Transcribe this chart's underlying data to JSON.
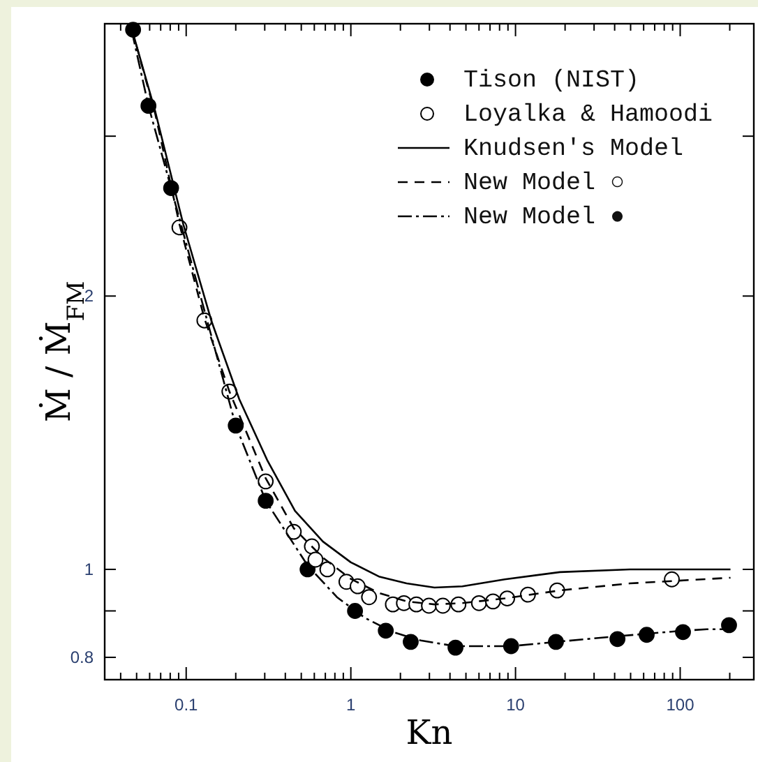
{
  "chart_data": {
    "type": "scatter",
    "xlabel": "Kn",
    "ylabel": "Ṁ / Ṁ$_{FM}$",
    "log": "xy",
    "xlim": [
      0.032,
      280
    ],
    "ylim": [
      0.756,
      3.99
    ],
    "xticks": [
      {
        "value": 0.04,
        "label": null
      },
      {
        "value": 0.05,
        "label": null
      },
      {
        "value": 0.06,
        "label": null
      },
      {
        "value": 0.07,
        "label": null
      },
      {
        "value": 0.08,
        "label": null
      },
      {
        "value": 0.09,
        "label": null
      },
      0.1,
      {
        "value": 0.2,
        "label": null
      },
      {
        "value": 0.3,
        "label": null
      },
      {
        "value": 0.4,
        "label": null
      },
      {
        "value": 0.5,
        "label": null
      },
      {
        "value": 0.6,
        "label": null
      },
      {
        "value": 0.7,
        "label": null
      },
      {
        "value": 0.8,
        "label": null
      },
      {
        "value": 0.9,
        "label": null
      },
      1,
      {
        "value": 2,
        "label": null
      },
      {
        "value": 3,
        "label": null
      },
      {
        "value": 4,
        "label": null
      },
      {
        "value": 5,
        "label": null
      },
      {
        "value": 6,
        "label": null
      },
      {
        "value": 7,
        "label": null
      },
      {
        "value": 8,
        "label": null
      },
      {
        "value": 9,
        "label": null
      },
      10,
      {
        "value": 20,
        "label": null
      },
      {
        "value": 30,
        "label": null
      },
      {
        "value": 40,
        "label": null
      },
      {
        "value": 50,
        "label": null
      },
      {
        "value": 60,
        "label": null
      },
      {
        "value": 70,
        "label": null
      },
      {
        "value": 80,
        "label": null
      },
      {
        "value": 90,
        "label": null
      },
      100,
      {
        "value": 200,
        "label": null
      }
    ],
    "yticks": [
      0.8,
      {
        "value": 0.9,
        "label": null
      },
      1,
      2,
      {
        "value": 3,
        "label": null
      }
    ],
    "grid": false,
    "legend": "top right",
    "series": [
      {
        "name": "Tison (NIST)",
        "marker": "circle",
        "color": "#000000",
        "x": [
          0.0476,
          0.059,
          0.081,
          0.2,
          0.304,
          0.546,
          1.06,
          1.63,
          2.31,
          4.32,
          9.4,
          17.6,
          41.6,
          62.6,
          104,
          198
        ],
        "values": [
          3.93,
          3.24,
          2.63,
          1.44,
          1.19,
          1.0,
          0.9,
          0.856,
          0.832,
          0.82,
          0.823,
          0.832,
          0.838,
          0.847,
          0.853,
          0.868
        ]
      },
      {
        "name": "Loyalka & Hamoodi",
        "marker": "circle",
        "color": "#ffffff",
        "x": [
          0.091,
          0.129,
          0.183,
          0.304,
          0.45,
          0.58,
          0.61,
          0.72,
          0.94,
          1.1,
          1.29,
          1.8,
          2.1,
          2.5,
          2.98,
          3.62,
          4.5,
          6.0,
          7.3,
          8.9,
          11.9,
          17.9,
          89
        ],
        "values": [
          2.38,
          1.88,
          1.57,
          1.25,
          1.1,
          1.06,
          1.025,
          1.0,
          0.969,
          0.958,
          0.932,
          0.915,
          0.918,
          0.915,
          0.912,
          0.912,
          0.915,
          0.918,
          0.922,
          0.929,
          0.938,
          0.948,
          0.975
        ]
      },
      {
        "name": "Knudsen's Model",
        "type": "line",
        "line_style": "solid",
        "marker": "none",
        "color": "#000000",
        "x": [
          0.0467,
          0.065,
          0.096,
          0.142,
          0.21,
          0.31,
          0.458,
          0.677,
          1,
          1.48,
          2.18,
          3.22,
          4.76,
          8.6,
          18.6,
          49.5,
          202
        ],
        "values": [
          3.94,
          3.19,
          2.4,
          1.88,
          1.54,
          1.32,
          1.16,
          1.073,
          1.018,
          0.982,
          0.965,
          0.955,
          0.958,
          0.975,
          0.993,
          1.0,
          1.0
        ]
      },
      {
        "name": "New Model ○",
        "type": "line",
        "line_style": "dashed",
        "marker": "none",
        "color": "#000000",
        "x": [
          0.0467,
          0.065,
          0.091,
          0.129,
          0.183,
          0.304,
          0.45,
          0.677,
          1,
          1.48,
          2.18,
          3.22,
          4.76,
          8.6,
          18.6,
          49.5,
          202
        ],
        "values": [
          3.94,
          3.17,
          2.4,
          1.89,
          1.57,
          1.26,
          1.11,
          1.03,
          0.976,
          0.942,
          0.922,
          0.915,
          0.918,
          0.929,
          0.948,
          0.965,
          0.979
        ]
      },
      {
        "name": "New Model ●",
        "type": "line",
        "line_style": "dashdot",
        "marker": "none",
        "color": "#000000",
        "x": [
          0.0467,
          0.059,
          0.081,
          0.2,
          0.304,
          0.546,
          0.823,
          1.22,
          1.8,
          2.65,
          4.32,
          9.4,
          17.6,
          41.6,
          104,
          145,
          202
        ],
        "values": [
          3.92,
          3.24,
          2.63,
          1.44,
          1.19,
          1.01,
          0.932,
          0.884,
          0.853,
          0.835,
          0.823,
          0.823,
          0.832,
          0.844,
          0.856,
          0.859,
          0.859
        ]
      }
    ]
  }
}
